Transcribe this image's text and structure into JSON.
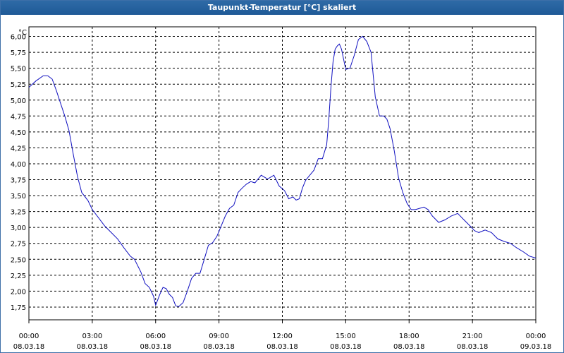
{
  "window": {
    "title": "Taupunkt-Temperatur [°C] skaliert"
  },
  "chart_data": {
    "type": "line",
    "title": "Taupunkt-Temperatur [°C] skaliert",
    "y_unit": "°C",
    "ylim": [
      1.55,
      6.15
    ],
    "y_ticks": [
      "6,00",
      "5,75",
      "5,50",
      "5,25",
      "5,00",
      "4,75",
      "4,50",
      "4,25",
      "4,00",
      "3,75",
      "3,50",
      "3,25",
      "3,00",
      "2,75",
      "2,50",
      "2,25",
      "2,00",
      "1,75"
    ],
    "x_tick_times": [
      "00:00",
      "03:00",
      "06:00",
      "09:00",
      "12:00",
      "15:00",
      "18:00",
      "21:00",
      "00:00"
    ],
    "x_tick_dates": [
      "08.03.18",
      "08.03.18",
      "08.03.18",
      "08.03.18",
      "08.03.18",
      "08.03.18",
      "08.03.18",
      "08.03.18",
      "09.03.18"
    ],
    "grid": true,
    "line_color": "#1010c0",
    "series": [
      {
        "x_hours": [
          0,
          0.33,
          0.67,
          0.9,
          1.1,
          1.3,
          1.5,
          1.7,
          1.9,
          2.1,
          2.3,
          2.5,
          2.8,
          3.0,
          3.3,
          3.6,
          3.9,
          4.2,
          4.5,
          4.8,
          5.0,
          5.3,
          5.5,
          5.7,
          5.9,
          6.0,
          6.2,
          6.35,
          6.5,
          6.65,
          6.8,
          6.95,
          7.1,
          7.3,
          7.5,
          7.7,
          7.9,
          8.1,
          8.3,
          8.5,
          8.7,
          8.9,
          9.1,
          9.3,
          9.5,
          9.7,
          9.9,
          10.1,
          10.3,
          10.5,
          10.7,
          11.0,
          11.3,
          11.6,
          11.85,
          12.1,
          12.3,
          12.5,
          12.65,
          12.8,
          12.95,
          13.1,
          13.3,
          13.5,
          13.7,
          13.9,
          14.1,
          14.2,
          14.3,
          14.4,
          14.5,
          14.6,
          14.7,
          14.8,
          15.0,
          15.2,
          15.4,
          15.6,
          15.8,
          16.0,
          16.2,
          16.4,
          16.6,
          16.8,
          16.95,
          17.1,
          17.3,
          17.5,
          17.7,
          17.9,
          18.1,
          18.3,
          18.5,
          18.7,
          18.9,
          19.1,
          19.4,
          19.7,
          20.0,
          20.3,
          20.6,
          20.9,
          21.1,
          21.3,
          21.6,
          21.9,
          22.2,
          22.5,
          22.8,
          23.1,
          23.4,
          23.7,
          24.0
        ],
        "values": [
          5.2,
          5.3,
          5.38,
          5.38,
          5.33,
          5.15,
          4.95,
          4.75,
          4.52,
          4.15,
          3.8,
          3.55,
          3.42,
          3.28,
          3.15,
          3.02,
          2.92,
          2.82,
          2.68,
          2.55,
          2.5,
          2.3,
          2.12,
          2.06,
          1.92,
          1.78,
          1.95,
          2.06,
          2.04,
          1.95,
          1.9,
          1.77,
          1.76,
          1.82,
          2.0,
          2.2,
          2.28,
          2.28,
          2.5,
          2.72,
          2.76,
          2.86,
          3.02,
          3.18,
          3.3,
          3.35,
          3.55,
          3.62,
          3.68,
          3.72,
          3.7,
          3.82,
          3.76,
          3.82,
          3.65,
          3.58,
          3.45,
          3.48,
          3.43,
          3.45,
          3.62,
          3.74,
          3.82,
          3.9,
          4.08,
          4.08,
          4.3,
          4.7,
          5.2,
          5.6,
          5.8,
          5.85,
          5.88,
          5.8,
          5.48,
          5.5,
          5.7,
          5.95,
          6.0,
          5.92,
          5.75,
          5.05,
          4.75,
          4.75,
          4.7,
          4.55,
          4.2,
          3.78,
          3.55,
          3.38,
          3.28,
          3.28,
          3.3,
          3.32,
          3.28,
          3.18,
          3.08,
          3.12,
          3.18,
          3.22,
          3.12,
          3.02,
          2.95,
          2.92,
          2.96,
          2.92,
          2.82,
          2.78,
          2.75,
          2.68,
          2.62,
          2.55,
          2.52
        ]
      }
    ]
  }
}
